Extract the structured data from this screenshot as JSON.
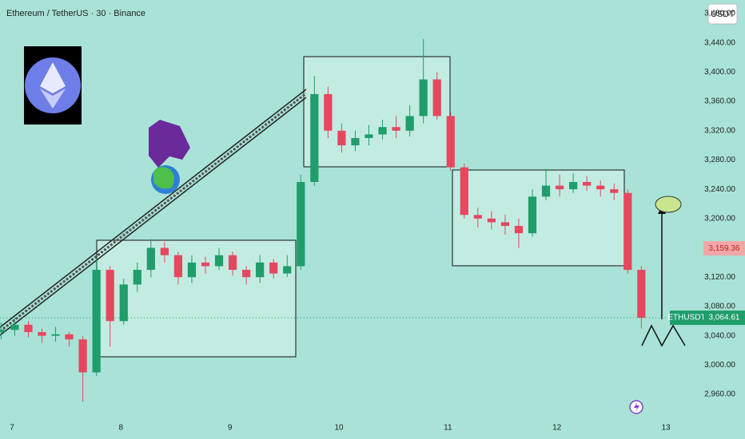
{
  "chart_data": {
    "type": "candlestick",
    "title": "Ethereum / TetherUS · 30 · Binance",
    "currency": "USDT",
    "symbol": "ETHUSDT",
    "last_price": {
      "value": 3064.61,
      "label": "3,064.61"
    },
    "marker_price": {
      "value": 3159.36,
      "label": "3,159.36"
    },
    "up_color": "#1f9d6b",
    "down_color": "#e6475f",
    "grid": false,
    "xlim": [
      6.89,
      13.33
    ],
    "xticks": [
      7,
      8,
      9,
      10,
      11,
      12,
      13
    ],
    "ylim": [
      2931.7,
      3498.5
    ],
    "yticks": [
      {
        "value": 2960,
        "label": "2,960.00"
      },
      {
        "value": 3000,
        "label": "3,000.00"
      },
      {
        "value": 3040,
        "label": "3,040.00"
      },
      {
        "value": 3080,
        "label": "3,080.00"
      },
      {
        "value": 3120,
        "label": "3,120.00"
      },
      {
        "value": 3200,
        "label": "3,200.00"
      },
      {
        "value": 3240,
        "label": "3,240.00"
      },
      {
        "value": 3280,
        "label": "3,280.00"
      },
      {
        "value": 3320,
        "label": "3,320.00"
      },
      {
        "value": 3360,
        "label": "3,360.00"
      },
      {
        "value": 3400,
        "label": "3,400.00"
      },
      {
        "value": 3440,
        "label": "3,440.00"
      },
      {
        "value": 3480,
        "label": "3,480.00"
      }
    ],
    "x": [
      6.9,
      7.025,
      7.15,
      7.275,
      7.4,
      7.525,
      7.65,
      7.775,
      7.9,
      8.025,
      8.15,
      8.275,
      8.4,
      8.525,
      8.65,
      8.775,
      8.9,
      9.025,
      9.15,
      9.275,
      9.4,
      9.525,
      9.65,
      9.775,
      9.9,
      10.025,
      10.15,
      10.275,
      10.4,
      10.525,
      10.65,
      10.775,
      10.9,
      11.025,
      11.15,
      11.275,
      11.4,
      11.525,
      11.65,
      11.775,
      11.9,
      12.025,
      12.15,
      12.275,
      12.4,
      12.525,
      12.65,
      12.775
    ],
    "open": [
      3045,
      3048,
      3055,
      3045,
      3040,
      3042,
      3035,
      2990,
      3130,
      3060,
      3110,
      3130,
      3160,
      3150,
      3120,
      3140,
      3135,
      3150,
      3130,
      3120,
      3140,
      3125,
      3135,
      3250,
      3370,
      3320,
      3300,
      3310,
      3315,
      3325,
      3320,
      3340,
      3390,
      3340,
      3270,
      3205,
      3200,
      3195,
      3190,
      3180,
      3230,
      3245,
      3240,
      3250,
      3245,
      3240,
      3235,
      3130
    ],
    "high": [
      3058,
      3065,
      3060,
      3050,
      3052,
      3045,
      3040,
      3145,
      3135,
      3118,
      3140,
      3172,
      3168,
      3155,
      3150,
      3148,
      3160,
      3155,
      3135,
      3150,
      3145,
      3150,
      3260,
      3395,
      3380,
      3330,
      3320,
      3328,
      3335,
      3340,
      3355,
      3445,
      3400,
      3345,
      3275,
      3215,
      3210,
      3205,
      3200,
      3240,
      3268,
      3260,
      3262,
      3258,
      3252,
      3248,
      3240,
      3135
    ],
    "low": [
      3035,
      3040,
      3038,
      3030,
      3032,
      3025,
      2950,
      2985,
      3025,
      3055,
      3100,
      3120,
      3140,
      3110,
      3112,
      3125,
      3130,
      3122,
      3110,
      3112,
      3118,
      3120,
      3130,
      3245,
      3310,
      3290,
      3292,
      3300,
      3308,
      3310,
      3312,
      3330,
      3335,
      3265,
      3200,
      3188,
      3185,
      3178,
      3160,
      3175,
      3225,
      3230,
      3235,
      3238,
      3230,
      3225,
      3125,
      3050
    ],
    "close": [
      3048,
      3055,
      3045,
      3040,
      3042,
      3035,
      2990,
      3130,
      3060,
      3110,
      3130,
      3160,
      3150,
      3120,
      3140,
      3135,
      3150,
      3130,
      3120,
      3140,
      3125,
      3135,
      3250,
      3370,
      3320,
      3300,
      3310,
      3315,
      3325,
      3320,
      3340,
      3390,
      3340,
      3270,
      3205,
      3200,
      3195,
      3190,
      3180,
      3230,
      3245,
      3240,
      3250,
      3245,
      3240,
      3235,
      3130,
      3064.61
    ]
  }
}
